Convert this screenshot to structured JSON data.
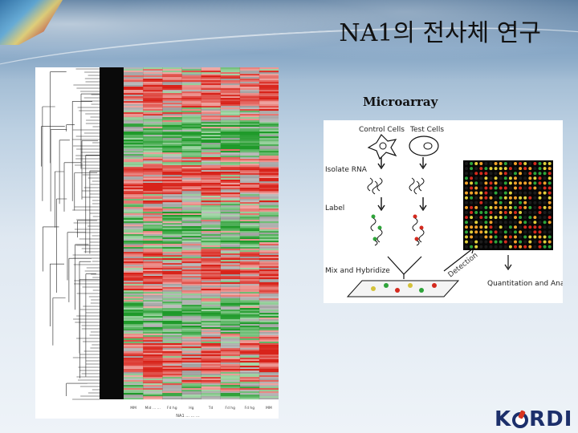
{
  "slide": {
    "title": "NA1의 전사체 연구",
    "microarray_label": "Microarray"
  },
  "heatmap": {
    "colors": {
      "up": "#d8231a",
      "down": "#1f9a2a",
      "neutral": "#0a0a0a"
    },
    "column_labels": [
      "MM",
      "Mid ... ...",
      "Fd hg",
      "Hg",
      "Td",
      "Fd hg",
      "Fd hg",
      "MM"
    ],
    "axis_label": "NA1 ... ... ..."
  },
  "diagram": {
    "control_label": "Control Cells",
    "test_label": "Test Cells",
    "step_isolate": "Isolate RNA",
    "step_label": "Label",
    "step_mix": "Mix and Hybridize",
    "detection_label": "Detection",
    "quantitation_label": "Quantitation and Analysis"
  },
  "logo": {
    "left": "K",
    "right": "RDI"
  }
}
